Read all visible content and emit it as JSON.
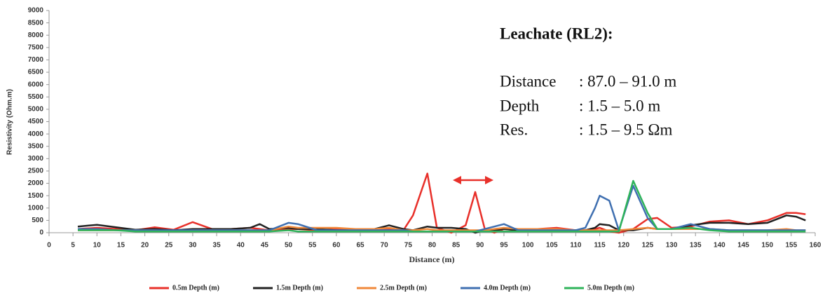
{
  "chart_data": {
    "type": "line",
    "x_label": "Distance (m)",
    "y_label": "Resistivity (Ohm.m)",
    "annotation": {
      "title": "Leachate (RL2):",
      "lines": [
        {
          "label": "Distance",
          "value": ": 87.0 – 91.0 m"
        },
        {
          "label": "Depth",
          "value": ": 1.5 – 5.0 m"
        },
        {
          "label": "Res.",
          "value": ": 1.5 – 9.5 Ωm"
        }
      ]
    },
    "x": [
      6,
      10,
      14,
      18,
      22,
      26,
      30,
      34,
      38,
      42,
      44,
      46,
      50,
      52,
      56,
      60,
      64,
      68,
      71,
      74,
      76,
      79,
      81,
      84,
      87,
      89,
      91,
      93,
      95,
      98,
      102,
      106,
      110,
      112,
      114,
      115,
      117,
      119,
      122,
      125,
      127,
      130,
      134,
      138,
      142,
      146,
      150,
      154,
      156,
      158
    ],
    "series": [
      {
        "name": "0.5m Depth (m)",
        "color": "#e8302a",
        "values": [
          150,
          200,
          150,
          100,
          220,
          120,
          430,
          150,
          150,
          200,
          150,
          100,
          150,
          150,
          100,
          150,
          150,
          150,
          150,
          100,
          700,
          2400,
          200,
          0,
          300,
          1650,
          150,
          0,
          150,
          100,
          150,
          200,
          100,
          100,
          150,
          200,
          50,
          0,
          150,
          550,
          600,
          200,
          250,
          450,
          500,
          350,
          500,
          800,
          800,
          750
        ]
      },
      {
        "name": "1.5m Depth (m)",
        "color": "#222222",
        "values": [
          250,
          320,
          220,
          120,
          150,
          100,
          150,
          150,
          150,
          200,
          350,
          150,
          200,
          150,
          150,
          100,
          100,
          150,
          300,
          150,
          100,
          250,
          200,
          200,
          150,
          0,
          100,
          100,
          150,
          100,
          100,
          100,
          100,
          100,
          200,
          350,
          300,
          100,
          100,
          200,
          150,
          150,
          300,
          400,
          400,
          350,
          400,
          700,
          650,
          500
        ]
      },
      {
        "name": "2.5m Depth (m)",
        "color": "#f0883a",
        "values": [
          100,
          100,
          100,
          100,
          100,
          80,
          100,
          100,
          100,
          100,
          100,
          100,
          250,
          200,
          200,
          200,
          150,
          150,
          200,
          100,
          100,
          150,
          100,
          100,
          100,
          100,
          100,
          150,
          200,
          150,
          150,
          150,
          100,
          100,
          100,
          100,
          100,
          100,
          150,
          200,
          150,
          150,
          150,
          150,
          100,
          100,
          100,
          150,
          100,
          100
        ]
      },
      {
        "name": "4.0m Depth (m)",
        "color": "#3f6fb0",
        "values": [
          150,
          150,
          100,
          100,
          100,
          100,
          100,
          100,
          100,
          100,
          100,
          100,
          400,
          350,
          100,
          100,
          100,
          100,
          100,
          100,
          50,
          50,
          50,
          50,
          50,
          50,
          150,
          250,
          350,
          100,
          100,
          100,
          100,
          200,
          1000,
          1500,
          1300,
          100,
          1900,
          600,
          150,
          150,
          350,
          150,
          100,
          100,
          100,
          100,
          100,
          100
        ]
      },
      {
        "name": "5.0m Depth (m)",
        "color": "#2eb35a",
        "values": [
          100,
          100,
          100,
          50,
          50,
          50,
          50,
          50,
          50,
          50,
          50,
          50,
          100,
          50,
          50,
          50,
          50,
          50,
          50,
          50,
          50,
          50,
          50,
          50,
          50,
          50,
          50,
          50,
          50,
          50,
          50,
          50,
          50,
          50,
          50,
          50,
          50,
          50,
          2100,
          800,
          150,
          150,
          200,
          100,
          50,
          50,
          50,
          50,
          50,
          50
        ]
      }
    ],
    "xlim": [
      0,
      160
    ],
    "xticks": [
      0,
      5,
      10,
      15,
      20,
      25,
      30,
      35,
      40,
      45,
      50,
      55,
      60,
      65,
      70,
      75,
      80,
      85,
      90,
      95,
      100,
      105,
      110,
      115,
      120,
      125,
      130,
      135,
      140,
      145,
      150,
      155,
      160
    ],
    "ylim": [
      0,
      9000
    ],
    "yticks": [
      0,
      500,
      1000,
      1500,
      2000,
      2500,
      3000,
      3500,
      4000,
      4500,
      5000,
      5500,
      6000,
      6500,
      7000,
      7500,
      8000,
      8500,
      9000
    ],
    "grid": false,
    "legend": "bottom"
  }
}
